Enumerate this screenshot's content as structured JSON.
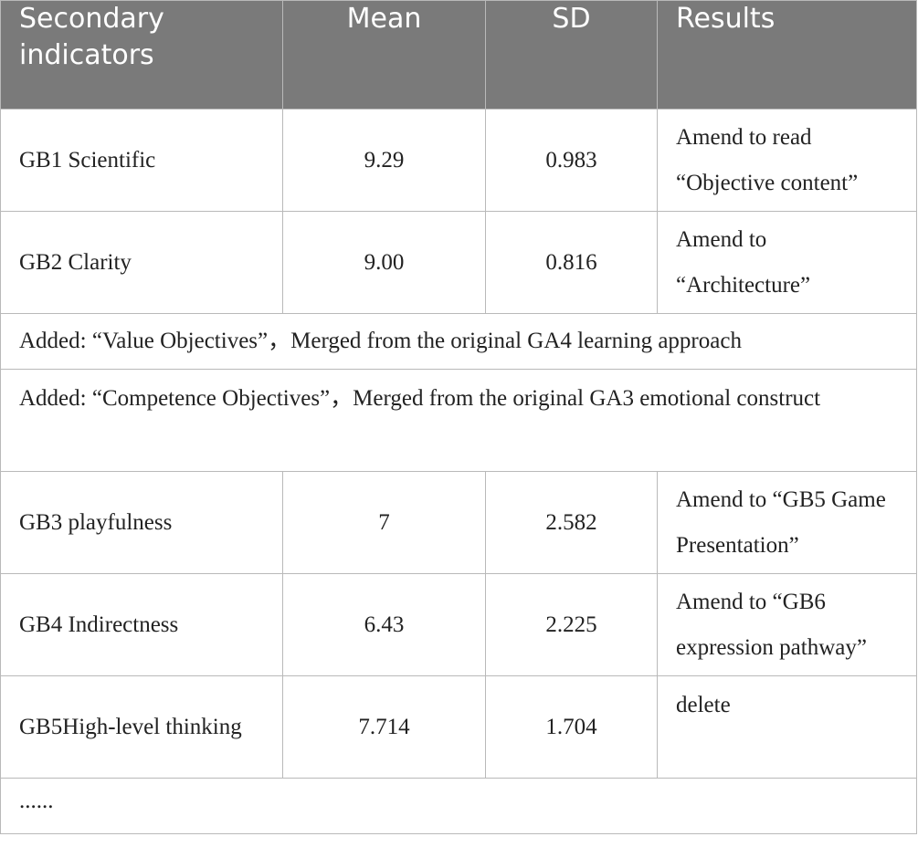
{
  "header": {
    "col1": "Secondary indicators",
    "col2": "Mean",
    "col3": "SD",
    "col4": "Results"
  },
  "rows": [
    {
      "indicator": "GB1 Scientific",
      "mean": "9.29",
      "sd": "0.983",
      "result": "Amend to read “Objective content”"
    },
    {
      "indicator": "GB2 Clarity",
      "mean": "9.00",
      "sd": "0.816",
      "result": "Amend to “Architecture”"
    },
    {
      "note": "Added: “Value Objectives”，Merged from the original GA4 learning approach"
    },
    {
      "note": "Added: “Competence Objectives”，Merged from the original GA3 emotional construct"
    },
    {
      "indicator": "GB3 playfulness",
      "mean": "7",
      "sd": "2.582",
      "result": "Amend to “GB5 Game Presentation”"
    },
    {
      "indicator": "GB4 Indirectness",
      "mean": "6.43",
      "sd": "2.225",
      "result": "Amend to “GB6 expression pathway”"
    },
    {
      "indicator": "GB5High-level thinking",
      "mean": "7.714",
      "sd": "1.704",
      "result": "delete"
    },
    {
      "note": "......"
    }
  ]
}
